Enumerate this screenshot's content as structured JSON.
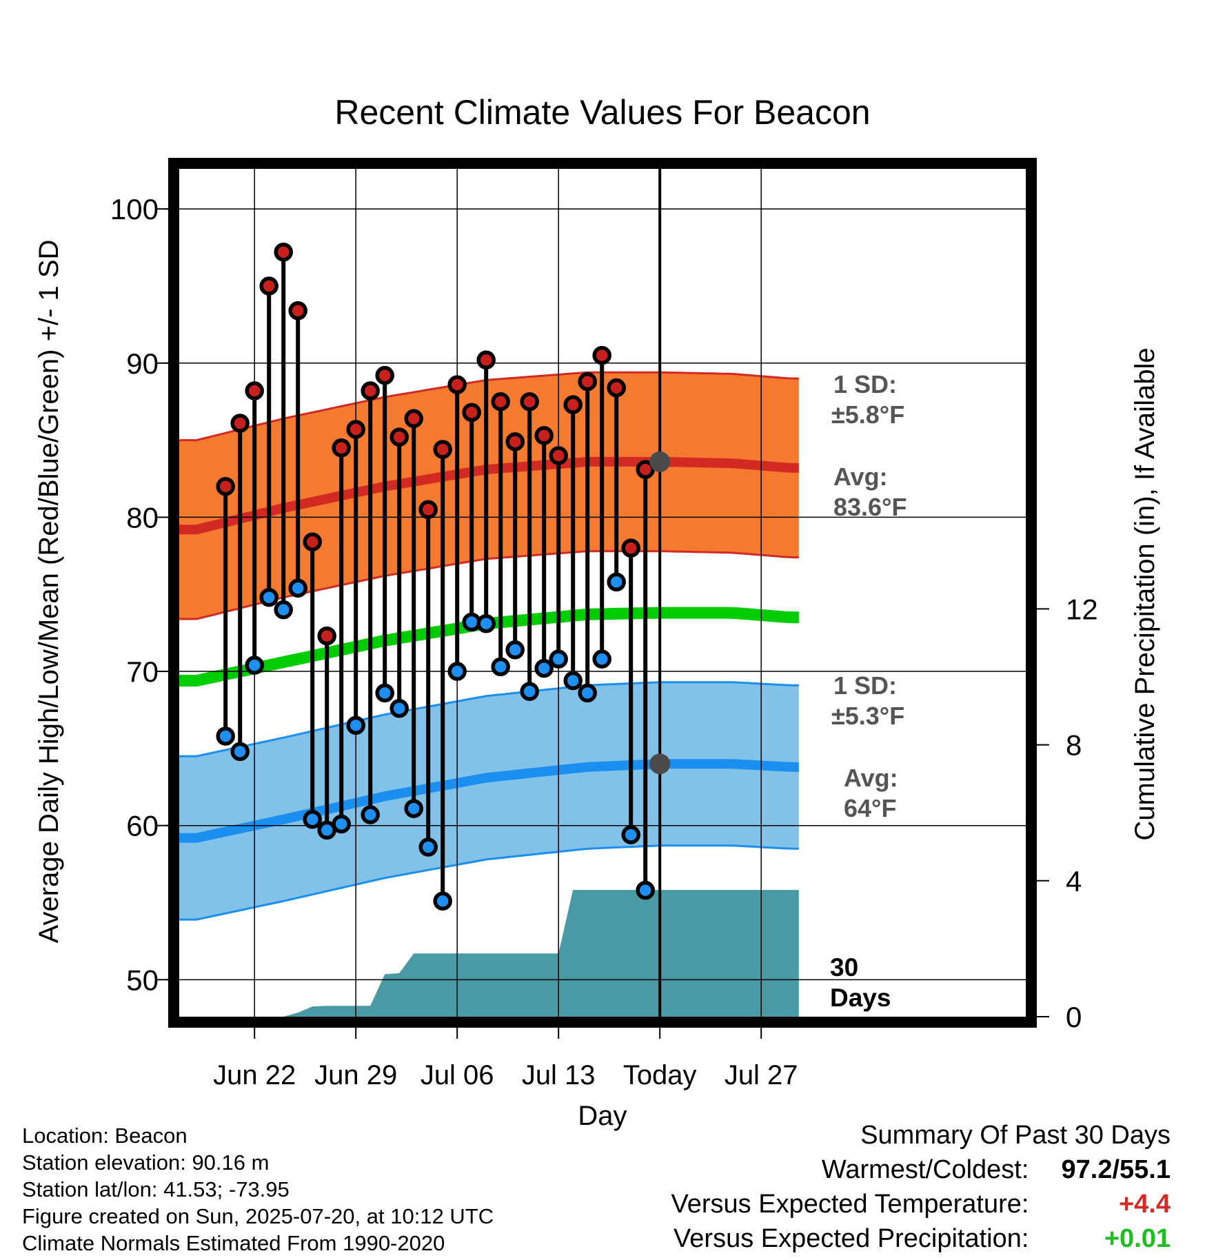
{
  "chart_data": {
    "type": "line",
    "title": "Recent Climate Values For Beacon",
    "xlabel": "Day",
    "ylabel_left": "Average Daily High/Low/Mean (Red/Blue/Green) +/- 1 SD",
    "ylabel_right": "Cumulative Precipitation (in), If Available",
    "x_tick_labels": [
      "Jun 22",
      "Jun 29",
      "Jul 06",
      "Jul 13",
      "Today",
      "Jul 27"
    ],
    "x_range_days": [
      -33.2,
      9.6
    ],
    "y_left_ticks": [
      50,
      60,
      70,
      80,
      90,
      100
    ],
    "y_left_range": [
      47.6,
      102.6
    ],
    "y_right_ticks": [
      0,
      4,
      8,
      12
    ],
    "today_marker_label": "30\nDays",
    "daily_highs": [
      82.0,
      86.1,
      88.2,
      95.0,
      97.2,
      93.4,
      78.4,
      72.3,
      84.5,
      85.7,
      88.2,
      89.2,
      85.2,
      86.4,
      80.5,
      84.4,
      88.6,
      86.8,
      90.2,
      87.5,
      84.9,
      87.5,
      85.3,
      84.0,
      87.3,
      88.8,
      90.5,
      88.4,
      78.0,
      83.1
    ],
    "daily_lows": [
      65.8,
      64.8,
      70.4,
      74.8,
      74.0,
      75.4,
      60.4,
      59.7,
      60.1,
      66.5,
      60.7,
      68.6,
      67.6,
      61.1,
      58.6,
      55.1,
      70.0,
      73.2,
      73.1,
      70.3,
      71.4,
      68.7,
      70.2,
      70.8,
      69.4,
      68.6,
      70.8,
      75.8,
      59.4,
      55.8
    ],
    "normal_high_avg_by_offset": [
      [
        -32,
        79.2
      ],
      [
        -26,
        80.6
      ],
      [
        -19,
        82.0
      ],
      [
        -12,
        83.1
      ],
      [
        -5,
        83.6
      ],
      [
        0,
        83.6
      ],
      [
        5,
        83.5
      ],
      [
        9,
        83.2
      ]
    ],
    "normal_low_avg_by_offset": [
      [
        -32,
        59.2
      ],
      [
        -26,
        60.4
      ],
      [
        -19,
        61.9
      ],
      [
        -12,
        63.1
      ],
      [
        -5,
        63.8
      ],
      [
        0,
        64.0
      ],
      [
        5,
        64.0
      ],
      [
        9,
        63.8
      ]
    ],
    "normal_mean_by_offset": [
      [
        -32,
        69.4
      ],
      [
        -26,
        70.6
      ],
      [
        -19,
        72.0
      ],
      [
        -12,
        73.1
      ],
      [
        -5,
        73.7
      ],
      [
        0,
        73.8
      ],
      [
        5,
        73.8
      ],
      [
        9,
        73.5
      ]
    ],
    "high_sd": 5.8,
    "low_sd": 5.3,
    "high_annotation": {
      "sd_label": "1 SD:",
      "sd_value": "±5.8°F",
      "avg_label": "Avg:",
      "avg_value": "83.6°F",
      "avg": 83.6
    },
    "low_annotation": {
      "sd_label": "1 SD:",
      "sd_value": "±5.3°F",
      "avg_label": "Avg:",
      "avg_value": "64°F",
      "avg": 64.0
    },
    "cumulative_precip_in": [
      [
        -33.2,
        0.0
      ],
      [
        -26,
        0.0
      ],
      [
        -25,
        0.12
      ],
      [
        -24,
        0.3
      ],
      [
        -23,
        0.32
      ],
      [
        -20,
        0.32
      ],
      [
        -19,
        1.25
      ],
      [
        -18,
        1.28
      ],
      [
        -17,
        1.86
      ],
      [
        -7,
        1.86
      ],
      [
        -6,
        3.73
      ],
      [
        9.6,
        3.73
      ]
    ],
    "colors": {
      "high_band": "#f47a30",
      "high_line": "#d22a22",
      "low_band": "#82c2e8",
      "low_line": "#1a8ff0",
      "mean_line": "#00cc00",
      "precip": "#4a9aa6",
      "high_marker": "#c8201d",
      "low_marker": "#1e8ef0",
      "avg_dot": "#4a4a4a",
      "annotation_text": "#555555",
      "positive_temp": "#d42a26",
      "positive_precip": "#22bb22"
    }
  },
  "info": {
    "location": "Location: Beacon",
    "elevation": "Station elevation: 90.16 m",
    "latlon": "Station lat/lon: 41.53; -73.95",
    "created": "Figure created on Sun, 2025-07-20, at 10:12 UTC",
    "normals": "Climate Normals Estimated From 1990-2020"
  },
  "summary": {
    "title": "Summary Of Past 30 Days",
    "warmest_label": "Warmest/Coldest:",
    "warmest_value": "97.2/55.1",
    "temp_label": "Versus Expected Temperature:",
    "temp_value": "+4.4",
    "precip_label": "Versus Expected Precipitation:",
    "precip_value": "+0.01"
  }
}
